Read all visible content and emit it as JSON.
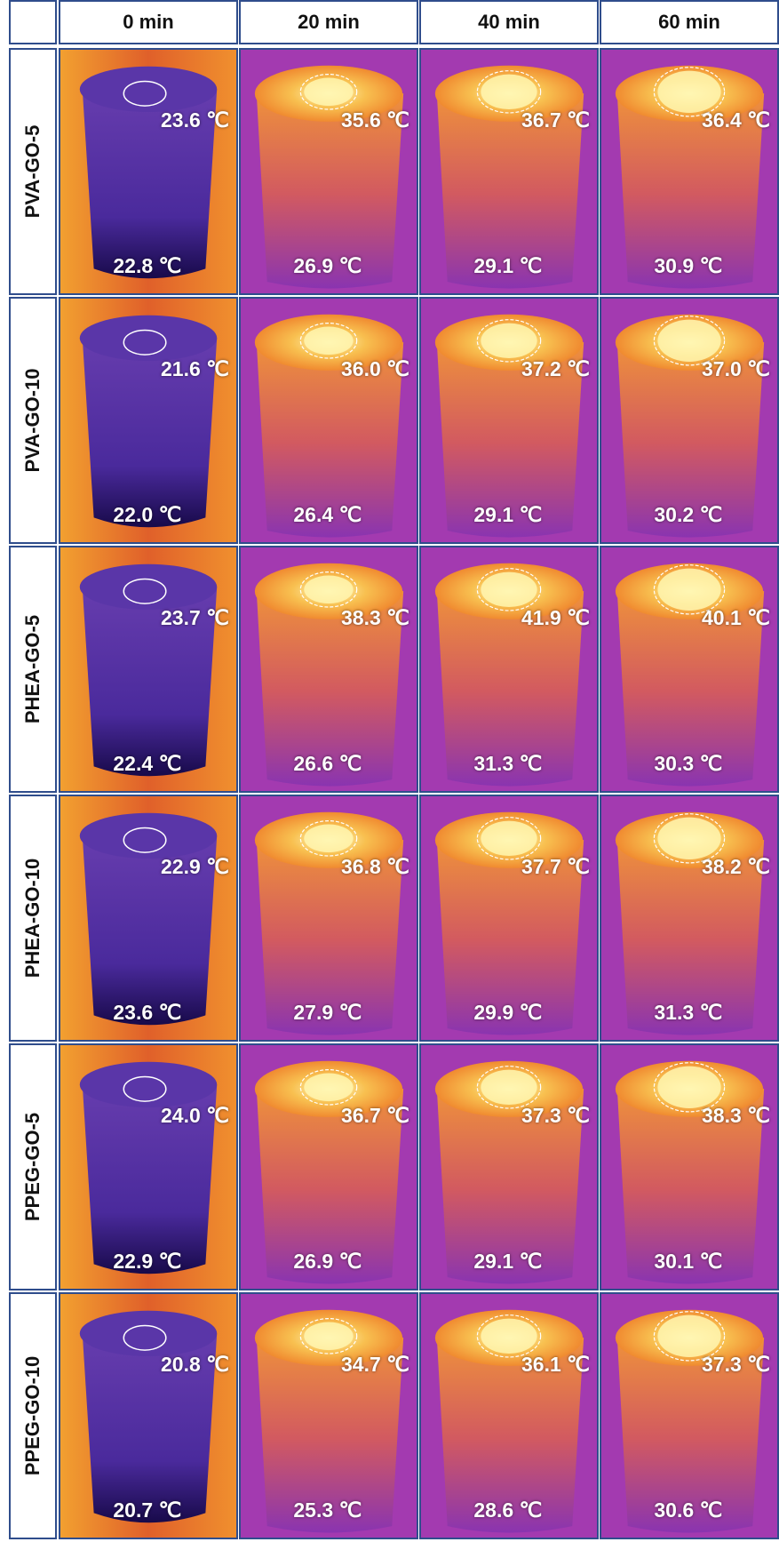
{
  "columns": [
    "0 min",
    "20 min",
    "40 min",
    "60 min"
  ],
  "rows": [
    {
      "label": "PVA-GO-5",
      "cells": [
        {
          "top": "23.6 ℃",
          "bottom": "22.8 ℃"
        },
        {
          "top": "35.6 ℃",
          "bottom": "26.9 ℃"
        },
        {
          "top": "36.7 ℃",
          "bottom": "29.1 ℃"
        },
        {
          "top": "36.4 ℃",
          "bottom": "30.9 ℃"
        }
      ]
    },
    {
      "label": "PVA-GO-10",
      "cells": [
        {
          "top": "21.6 ℃",
          "bottom": "22.0 ℃"
        },
        {
          "top": "36.0 ℃",
          "bottom": "26.4 ℃"
        },
        {
          "top": "37.2 ℃",
          "bottom": "29.1 ℃"
        },
        {
          "top": "37.0 ℃",
          "bottom": "30.2 ℃"
        }
      ]
    },
    {
      "label": "PHEA-GO-5",
      "cells": [
        {
          "top": "23.7 ℃",
          "bottom": "22.4 ℃"
        },
        {
          "top": "38.3 ℃",
          "bottom": "26.6 ℃"
        },
        {
          "top": "41.9 ℃",
          "bottom": "31.3 ℃"
        },
        {
          "top": "40.1 ℃",
          "bottom": "30.3 ℃"
        }
      ]
    },
    {
      "label": "PHEA-GO-10",
      "cells": [
        {
          "top": "22.9 ℃",
          "bottom": "23.6 ℃"
        },
        {
          "top": "36.8 ℃",
          "bottom": "27.9 ℃"
        },
        {
          "top": "37.7 ℃",
          "bottom": "29.9 ℃"
        },
        {
          "top": "38.2 ℃",
          "bottom": "31.3 ℃"
        }
      ]
    },
    {
      "label": "PPEG-GO-5",
      "cells": [
        {
          "top": "24.0 ℃",
          "bottom": "22.9 ℃"
        },
        {
          "top": "36.7 ℃",
          "bottom": "26.9 ℃"
        },
        {
          "top": "37.3 ℃",
          "bottom": "29.1 ℃"
        },
        {
          "top": "38.3 ℃",
          "bottom": "30.1 ℃"
        }
      ]
    },
    {
      "label": "PPEG-GO-10",
      "cells": [
        {
          "top": "20.8 ℃",
          "bottom": "20.7 ℃"
        },
        {
          "top": "34.7 ℃",
          "bottom": "25.3 ℃"
        },
        {
          "top": "36.1 ℃",
          "bottom": "28.6 ℃"
        },
        {
          "top": "37.3 ℃",
          "bottom": "30.6 ℃"
        }
      ]
    }
  ]
}
